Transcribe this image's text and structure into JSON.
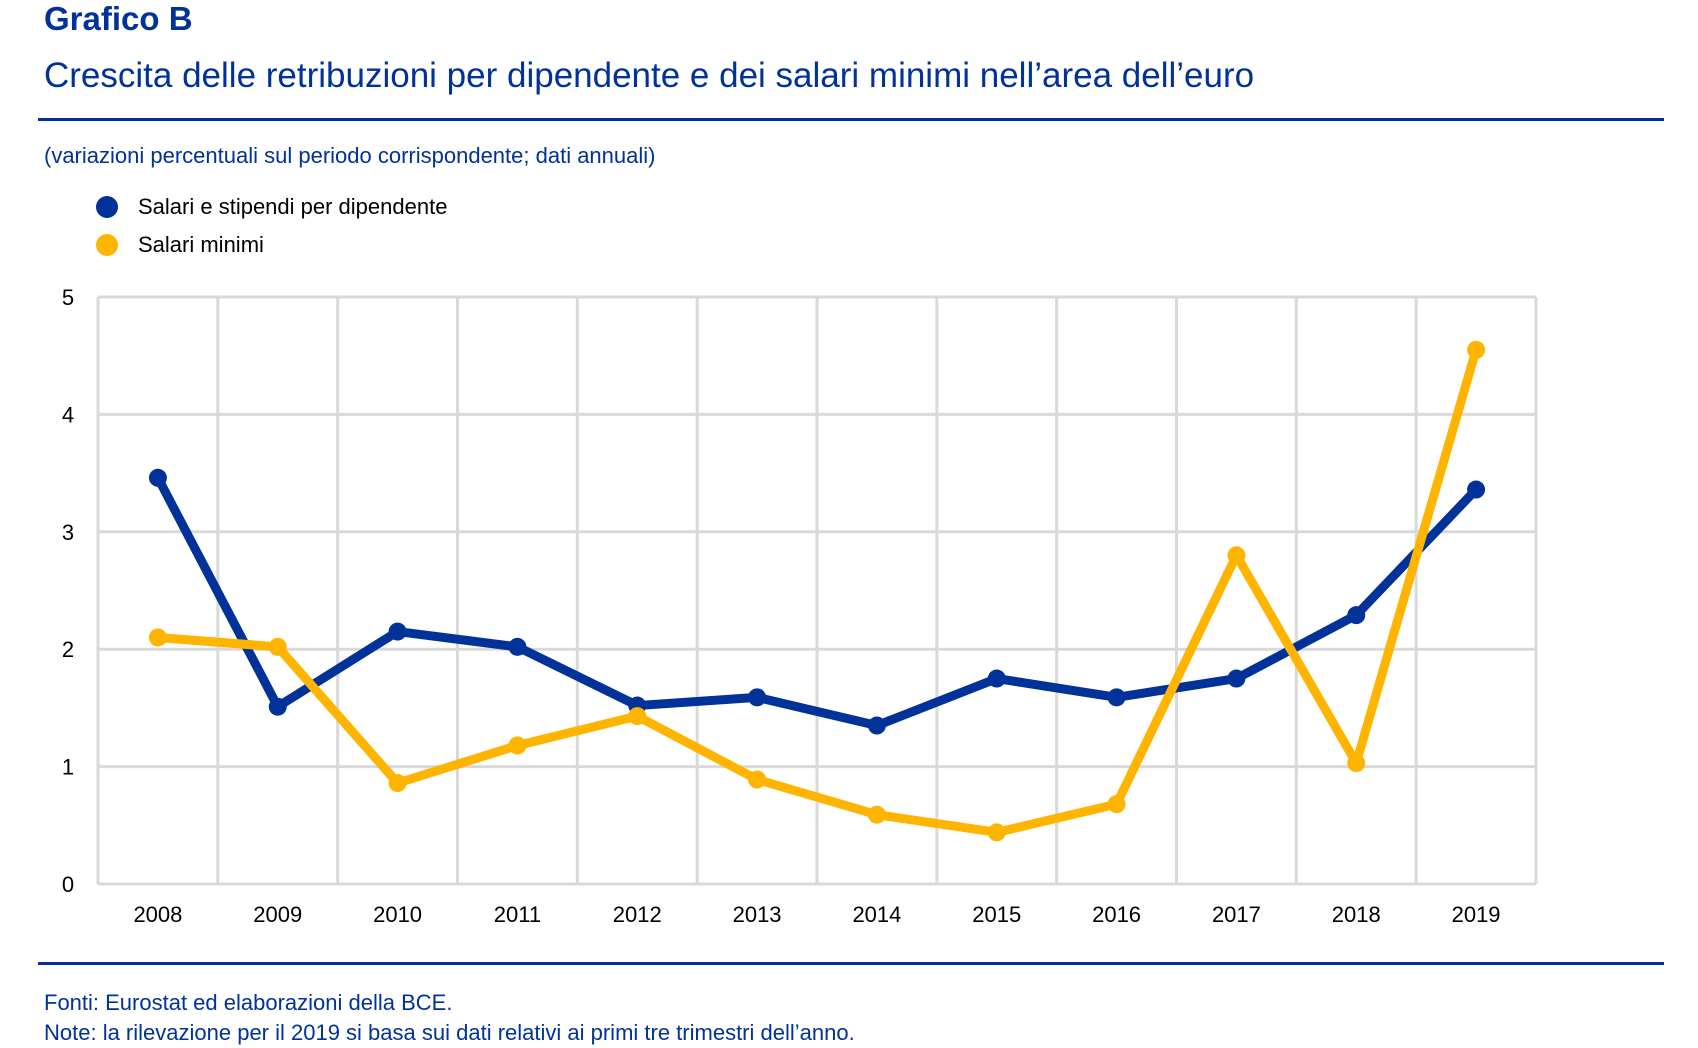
{
  "header": {
    "label": "Grafico B",
    "title": "Crescita delle retribuzioni per dipendente e dei salari minimi nell’area dell’euro",
    "subtitle": "(variazioni percentuali sul periodo corrispondente; dati annuali)"
  },
  "legend": [
    {
      "label": "Salari e stipendi  per dipendente",
      "color": "#003299"
    },
    {
      "label": "Salari  minimi",
      "color": "#FFB400"
    }
  ],
  "footer": {
    "sources": "Fonti: Eurostat ed elaborazioni della BCE.",
    "notes": "Note: la rilevazione per il 2019 si basa sui dati relativi ai primi tre trimestri dell’anno."
  },
  "chart_data": {
    "type": "line",
    "title": "Crescita delle retribuzioni per dipendente e dei salari minimi nell’area dell’euro",
    "xlabel": "",
    "ylabel": "",
    "categories": [
      "2008",
      "2009",
      "2010",
      "2011",
      "2012",
      "2013",
      "2014",
      "2015",
      "2016",
      "2017",
      "2018",
      "2019"
    ],
    "yticks": [
      "0",
      "1",
      "2",
      "3",
      "4",
      "5"
    ],
    "ylim": [
      0,
      5
    ],
    "grid": true,
    "legend_position": "top-left",
    "series": [
      {
        "name": "Salari e stipendi per dipendente",
        "color": "#003299",
        "values": [
          3.46,
          1.51,
          2.15,
          2.02,
          1.52,
          1.59,
          1.35,
          1.75,
          1.59,
          1.75,
          2.29,
          3.36
        ]
      },
      {
        "name": "Salari minimi",
        "color": "#FFB400",
        "values": [
          2.1,
          2.02,
          0.86,
          1.18,
          1.43,
          0.89,
          0.59,
          0.44,
          0.68,
          2.8,
          1.03,
          4.55
        ]
      }
    ]
  }
}
